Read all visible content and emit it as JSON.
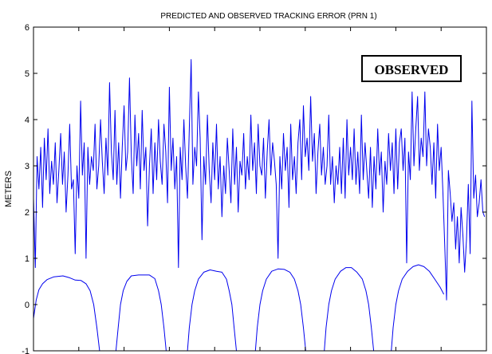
{
  "chart_data": {
    "type": "line",
    "title": "PREDICTED AND OBSERVED TRACKING ERROR (PRN 1)",
    "xlabel": "",
    "ylabel": "METERS",
    "xlim": [
      0,
      1000
    ],
    "ylim": [
      -1,
      6
    ],
    "yticks": [
      -1,
      0,
      1,
      2,
      3,
      4,
      5,
      6
    ],
    "grid": false,
    "annotation": "OBSERVED",
    "colors": {
      "line": "#0000ee",
      "axis": "#000000"
    },
    "series": [
      {
        "values": [
          [
            0,
            2.3
          ],
          [
            4,
            0.8
          ],
          [
            8,
            3.2
          ],
          [
            12,
            2.5
          ],
          [
            16,
            3.4
          ],
          [
            20,
            2.1
          ],
          [
            24,
            3.6
          ],
          [
            28,
            2.7
          ],
          [
            32,
            3.8
          ],
          [
            36,
            2.4
          ],
          [
            40,
            3.1
          ],
          [
            44,
            2.6
          ],
          [
            48,
            3.5
          ],
          [
            52,
            2.2
          ],
          [
            56,
            2.9
          ],
          [
            60,
            3.7
          ],
          [
            64,
            2.6
          ],
          [
            68,
            3.3
          ],
          [
            72,
            2.0
          ],
          [
            76,
            2.8
          ],
          [
            80,
            3.9
          ],
          [
            84,
            2.5
          ],
          [
            88,
            2.7
          ],
          [
            92,
            1.1
          ],
          [
            96,
            3.0
          ],
          [
            100,
            2.3
          ],
          [
            104,
            4.4
          ],
          [
            108,
            2.8
          ],
          [
            112,
            3.5
          ],
          [
            116,
            1.0
          ],
          [
            120,
            3.4
          ],
          [
            124,
            2.6
          ],
          [
            128,
            3.2
          ],
          [
            132,
            2.9
          ],
          [
            136,
            3.9
          ],
          [
            140,
            2.5
          ],
          [
            144,
            3.0
          ],
          [
            148,
            4.0
          ],
          [
            152,
            3.1
          ],
          [
            156,
            2.4
          ],
          [
            160,
            3.6
          ],
          [
            164,
            2.8
          ],
          [
            168,
            4.8
          ],
          [
            172,
            3.3
          ],
          [
            176,
            2.7
          ],
          [
            180,
            4.2
          ],
          [
            184,
            2.6
          ],
          [
            188,
            3.5
          ],
          [
            192,
            2.3
          ],
          [
            196,
            3.4
          ],
          [
            200,
            4.3
          ],
          [
            204,
            2.9
          ],
          [
            208,
            3.3
          ],
          [
            212,
            4.9
          ],
          [
            216,
            3.2
          ],
          [
            220,
            2.4
          ],
          [
            224,
            4.1
          ],
          [
            228,
            3.0
          ],
          [
            232,
            3.7
          ],
          [
            236,
            2.5
          ],
          [
            240,
            4.2
          ],
          [
            244,
            2.9
          ],
          [
            248,
            3.4
          ],
          [
            252,
            1.7
          ],
          [
            256,
            3.0
          ],
          [
            260,
            3.8
          ],
          [
            264,
            2.4
          ],
          [
            268,
            3.5
          ],
          [
            272,
            2.7
          ],
          [
            276,
            4.0
          ],
          [
            280,
            3.1
          ],
          [
            284,
            2.6
          ],
          [
            288,
            3.9
          ],
          [
            292,
            3.3
          ],
          [
            296,
            2.2
          ],
          [
            300,
            4.7
          ],
          [
            304,
            2.9
          ],
          [
            308,
            3.6
          ],
          [
            312,
            2.5
          ],
          [
            316,
            3.2
          ],
          [
            320,
            0.8
          ],
          [
            324,
            3.4
          ],
          [
            328,
            2.7
          ],
          [
            332,
            4.0
          ],
          [
            336,
            3.0
          ],
          [
            340,
            2.3
          ],
          [
            344,
            3.8
          ],
          [
            348,
            5.3
          ],
          [
            352,
            2.6
          ],
          [
            356,
            3.4
          ],
          [
            360,
            3.0
          ],
          [
            364,
            4.6
          ],
          [
            368,
            3.6
          ],
          [
            372,
            1.4
          ],
          [
            376,
            3.2
          ],
          [
            380,
            2.6
          ],
          [
            384,
            4.1
          ],
          [
            388,
            2.9
          ],
          [
            392,
            2.2
          ],
          [
            396,
            3.5
          ],
          [
            400,
            2.7
          ],
          [
            404,
            3.9
          ],
          [
            408,
            2.5
          ],
          [
            412,
            3.2
          ],
          [
            416,
            1.9
          ],
          [
            420,
            3.0
          ],
          [
            424,
            2.4
          ],
          [
            428,
            3.6
          ],
          [
            432,
            2.9
          ],
          [
            436,
            2.2
          ],
          [
            440,
            3.8
          ],
          [
            444,
            2.6
          ],
          [
            448,
            3.4
          ],
          [
            452,
            2.0
          ],
          [
            456,
            3.1
          ],
          [
            460,
            2.8
          ],
          [
            464,
            3.7
          ],
          [
            468,
            2.5
          ],
          [
            472,
            3.2
          ],
          [
            476,
            2.7
          ],
          [
            480,
            4.1
          ],
          [
            484,
            2.9
          ],
          [
            488,
            3.5
          ],
          [
            492,
            2.4
          ],
          [
            496,
            3.9
          ],
          [
            500,
            3.0
          ],
          [
            504,
            2.8
          ],
          [
            508,
            3.6
          ],
          [
            512,
            2.3
          ],
          [
            516,
            3.3
          ],
          [
            520,
            4.0
          ],
          [
            524,
            2.8
          ],
          [
            528,
            3.5
          ],
          [
            532,
            3.1
          ],
          [
            536,
            2.6
          ],
          [
            540,
            1.0
          ],
          [
            544,
            3.2
          ],
          [
            548,
            2.5
          ],
          [
            552,
            3.7
          ],
          [
            556,
            2.9
          ],
          [
            560,
            3.4
          ],
          [
            564,
            2.1
          ],
          [
            568,
            3.9
          ],
          [
            572,
            2.7
          ],
          [
            576,
            3.2
          ],
          [
            580,
            2.4
          ],
          [
            584,
            3.5
          ],
          [
            588,
            4.0
          ],
          [
            592,
            2.7
          ],
          [
            596,
            4.3
          ],
          [
            600,
            3.2
          ],
          [
            604,
            3.6
          ],
          [
            608,
            2.9
          ],
          [
            612,
            4.5
          ],
          [
            616,
            3.1
          ],
          [
            620,
            3.7
          ],
          [
            624,
            2.4
          ],
          [
            628,
            3.3
          ],
          [
            632,
            3.9
          ],
          [
            636,
            2.8
          ],
          [
            640,
            3.4
          ],
          [
            644,
            2.6
          ],
          [
            648,
            3.0
          ],
          [
            652,
            4.1
          ],
          [
            656,
            2.6
          ],
          [
            660,
            3.2
          ],
          [
            664,
            2.2
          ],
          [
            668,
            3.0
          ],
          [
            672,
            2.6
          ],
          [
            676,
            3.4
          ],
          [
            680,
            2.4
          ],
          [
            684,
            3.6
          ],
          [
            688,
            2.3
          ],
          [
            692,
            4.0
          ],
          [
            696,
            2.8
          ],
          [
            700,
            3.4
          ],
          [
            704,
            2.7
          ],
          [
            708,
            3.8
          ],
          [
            712,
            2.6
          ],
          [
            716,
            3.3
          ],
          [
            720,
            2.4
          ],
          [
            724,
            4.1
          ],
          [
            728,
            2.7
          ],
          [
            732,
            3.5
          ],
          [
            736,
            2.9
          ],
          [
            740,
            2.3
          ],
          [
            744,
            3.4
          ],
          [
            748,
            2.1
          ],
          [
            752,
            3.2
          ],
          [
            756,
            2.5
          ],
          [
            760,
            3.8
          ],
          [
            764,
            2.8
          ],
          [
            768,
            3.3
          ],
          [
            772,
            2.0
          ],
          [
            776,
            3.1
          ],
          [
            780,
            2.6
          ],
          [
            784,
            3.7
          ],
          [
            788,
            2.9
          ],
          [
            792,
            3.5
          ],
          [
            796,
            2.4
          ],
          [
            800,
            3.8
          ],
          [
            804,
            2.5
          ],
          [
            808,
            3.5
          ],
          [
            812,
            3.8
          ],
          [
            816,
            2.9
          ],
          [
            820,
            3.6
          ],
          [
            824,
            0.9
          ],
          [
            828,
            3.3
          ],
          [
            832,
            2.7
          ],
          [
            836,
            4.6
          ],
          [
            840,
            3.0
          ],
          [
            844,
            3.8
          ],
          [
            848,
            4.5
          ],
          [
            852,
            2.9
          ],
          [
            856,
            3.6
          ],
          [
            860,
            3.2
          ],
          [
            864,
            4.6
          ],
          [
            868,
            3.0
          ],
          [
            872,
            3.8
          ],
          [
            876,
            3.4
          ],
          [
            880,
            2.6
          ],
          [
            884,
            3.5
          ],
          [
            888,
            2.3
          ],
          [
            892,
            3.9
          ],
          [
            896,
            2.9
          ],
          [
            900,
            3.4
          ],
          [
            904,
            2.4
          ],
          [
            908,
            1.3
          ],
          [
            912,
            0.1
          ],
          [
            916,
            2.9
          ],
          [
            920,
            2.4
          ],
          [
            924,
            1.8
          ],
          [
            928,
            2.2
          ],
          [
            932,
            1.2
          ],
          [
            936,
            1.9
          ],
          [
            940,
            0.9
          ],
          [
            944,
            2.1
          ],
          [
            948,
            1.5
          ],
          [
            952,
            0.7
          ],
          [
            956,
            1.4
          ],
          [
            960,
            2.6
          ],
          [
            964,
            1.1
          ],
          [
            968,
            4.4
          ],
          [
            972,
            2.3
          ],
          [
            976,
            2.8
          ],
          [
            980,
            1.9
          ],
          [
            984,
            2.2
          ],
          [
            988,
            2.7
          ],
          [
            992,
            2.0
          ],
          [
            996,
            1.9
          ]
        ]
      },
      {
        "values": [
          [
            0,
            -0.3
          ],
          [
            6,
            0.1
          ],
          [
            12,
            0.32
          ],
          [
            20,
            0.45
          ],
          [
            30,
            0.54
          ],
          [
            45,
            0.6
          ],
          [
            65,
            0.62
          ],
          [
            80,
            0.58
          ],
          [
            92,
            0.53
          ],
          [
            105,
            0.52
          ],
          [
            116,
            0.45
          ],
          [
            125,
            0.3
          ],
          [
            133,
            0.0
          ],
          [
            140,
            -0.5
          ],
          [
            146,
            -1.0
          ],
          [
            182,
            -1.0
          ],
          [
            187,
            -0.5
          ],
          [
            192,
            0.0
          ],
          [
            198,
            0.3
          ],
          [
            206,
            0.5
          ],
          [
            216,
            0.62
          ],
          [
            232,
            0.64
          ],
          [
            256,
            0.64
          ],
          [
            268,
            0.56
          ],
          [
            276,
            0.3
          ],
          [
            282,
            0.0
          ],
          [
            288,
            -0.5
          ],
          [
            293,
            -1.0
          ],
          [
            340,
            -1.0
          ],
          [
            344,
            -0.5
          ],
          [
            350,
            0.0
          ],
          [
            356,
            0.3
          ],
          [
            364,
            0.55
          ],
          [
            376,
            0.7
          ],
          [
            390,
            0.75
          ],
          [
            404,
            0.72
          ],
          [
            416,
            0.7
          ],
          [
            426,
            0.55
          ],
          [
            432,
            0.3
          ],
          [
            438,
            0.0
          ],
          [
            443,
            -0.5
          ],
          [
            448,
            -1.0
          ],
          [
            490,
            -1.0
          ],
          [
            494,
            -0.5
          ],
          [
            500,
            0.0
          ],
          [
            506,
            0.3
          ],
          [
            514,
            0.55
          ],
          [
            526,
            0.72
          ],
          [
            540,
            0.77
          ],
          [
            554,
            0.76
          ],
          [
            566,
            0.7
          ],
          [
            576,
            0.55
          ],
          [
            584,
            0.3
          ],
          [
            590,
            0.0
          ],
          [
            596,
            -0.5
          ],
          [
            601,
            -1.0
          ],
          [
            642,
            -1.0
          ],
          [
            646,
            -0.5
          ],
          [
            652,
            0.0
          ],
          [
            658,
            0.3
          ],
          [
            666,
            0.55
          ],
          [
            678,
            0.72
          ],
          [
            690,
            0.8
          ],
          [
            702,
            0.8
          ],
          [
            714,
            0.7
          ],
          [
            726,
            0.55
          ],
          [
            734,
            0.3
          ],
          [
            740,
            0.0
          ],
          [
            746,
            -0.5
          ],
          [
            751,
            -1.0
          ],
          [
            790,
            -1.0
          ],
          [
            794,
            -0.5
          ],
          [
            800,
            0.0
          ],
          [
            806,
            0.3
          ],
          [
            814,
            0.55
          ],
          [
            826,
            0.72
          ],
          [
            838,
            0.82
          ],
          [
            850,
            0.86
          ],
          [
            862,
            0.82
          ],
          [
            874,
            0.72
          ],
          [
            886,
            0.55
          ],
          [
            898,
            0.37
          ],
          [
            906,
            0.22
          ]
        ]
      }
    ]
  }
}
